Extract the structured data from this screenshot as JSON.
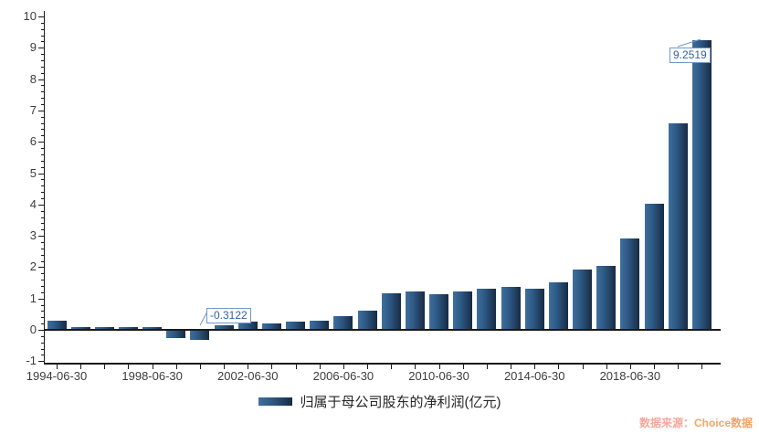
{
  "chart_data": {
    "type": "bar",
    "title": "",
    "series_name": "归属于母公司股东的净利润(亿元)",
    "categories": [
      "1994-06-30",
      "1995-06-30",
      "1996-06-30",
      "1997-06-30",
      "1998-06-30",
      "1999-06-30",
      "2000-06-30",
      "2001-06-30",
      "2002-06-30",
      "2003-06-30",
      "2004-06-30",
      "2005-06-30",
      "2006-06-30",
      "2007-06-30",
      "2008-06-30",
      "2009-06-30",
      "2010-06-30",
      "2011-06-30",
      "2012-06-30",
      "2013-06-30",
      "2014-06-30",
      "2015-06-30",
      "2016-06-30",
      "2017-06-30",
      "2018-06-30",
      "2019-06-30",
      "2020-06-30",
      "2021-06-30"
    ],
    "values": [
      0.28,
      0.08,
      0.09,
      0.09,
      0.09,
      -0.26,
      -0.3122,
      0.15,
      0.25,
      0.21,
      0.25,
      0.3,
      0.45,
      0.6,
      1.17,
      1.22,
      1.15,
      1.22,
      1.3,
      1.38,
      1.31,
      1.53,
      1.92,
      2.04,
      2.92,
      4.03,
      6.58,
      9.2519
    ],
    "ylim": [
      -1,
      10
    ],
    "y_tick_labels": [
      "10",
      "9",
      "8",
      "7",
      "6",
      "5",
      "4",
      "3",
      "2",
      "1",
      "0",
      "-1"
    ],
    "y_minor_step": 0.2,
    "x_label_every": 4,
    "x_tick_labels_shown": [
      "1994-06-30",
      "1998-06-30",
      "2002-06-30",
      "2006-06-30",
      "2010-06-30",
      "2014-06-30",
      "2018-06-30"
    ],
    "annotations": [
      {
        "index": 6,
        "label": "-0.3122"
      },
      {
        "index": 27,
        "label": "9.2519"
      }
    ],
    "grid": false,
    "legend_position": "bottom-center",
    "colors": {
      "bar_left": "#3e6f9f",
      "bar_mid": "#2c5681",
      "bar_right": "#182b42",
      "axis": "#1a1a1a",
      "tick_label": "#3c3c3c",
      "annotation_text": "#30639e",
      "annotation_border": "#7296c5"
    }
  },
  "legend": {
    "label": "归属于母公司股东的净利润(亿元)"
  },
  "source": {
    "prefix": "数据来源：",
    "name": "Choice数据",
    "prefix_color": "#f5a79b",
    "name_color": "#f5a468"
  }
}
